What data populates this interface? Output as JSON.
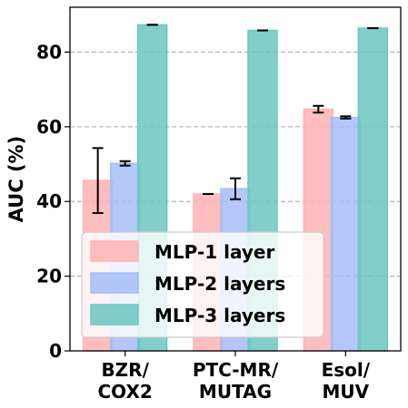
{
  "chart_data": {
    "type": "bar",
    "categories": [
      [
        "BZR/",
        "COX2"
      ],
      [
        "PTC-MR/",
        "MUTAG"
      ],
      [
        "Esol/",
        "MUV"
      ]
    ],
    "series": [
      {
        "name": "MLP-1 layer",
        "color": "#ffb3b3",
        "values": [
          45.6,
          42.0,
          64.7
        ],
        "errors": [
          8.7,
          0.0,
          0.9
        ]
      },
      {
        "name": "MLP-2 layers",
        "color": "#a6bdf7",
        "values": [
          50.2,
          43.4,
          62.5
        ],
        "errors": [
          0.6,
          2.8,
          0.3
        ]
      },
      {
        "name": "MLP-3 layers",
        "color": "#6cc7c1",
        "values": [
          87.3,
          85.8,
          86.4
        ],
        "errors": [
          0.0,
          0.0,
          0.0
        ]
      }
    ],
    "ylabel": "AUC (%)",
    "ylim": [
      0,
      92
    ],
    "yticks": [
      0,
      20,
      40,
      60,
      80
    ],
    "grid": true,
    "grid_style": "dashed",
    "legend_position": "lower-left"
  }
}
